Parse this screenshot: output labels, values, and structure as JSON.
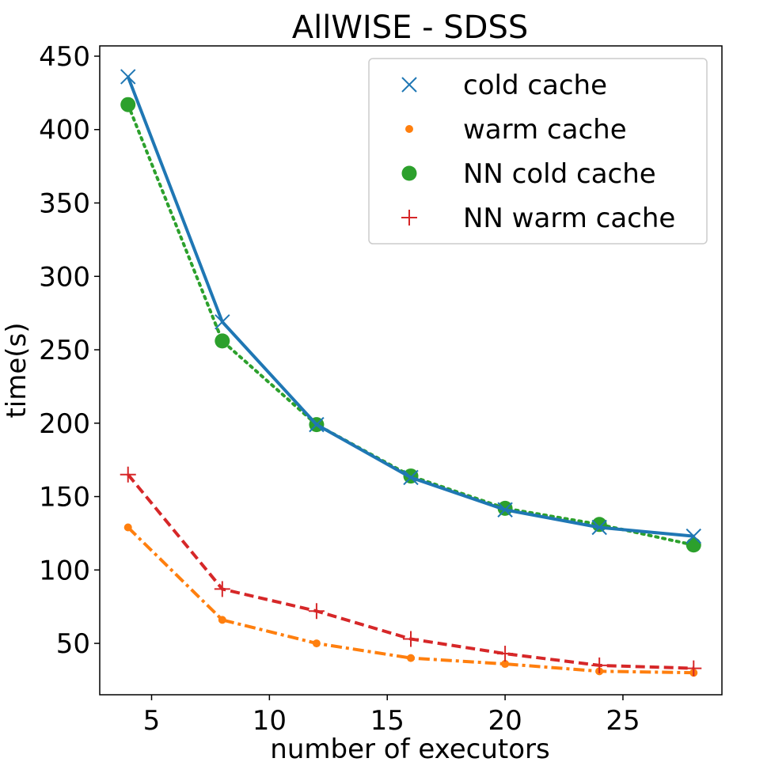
{
  "chart_data": {
    "type": "line",
    "title": "AllWISE - SDSS",
    "xlabel": "number of executors",
    "ylabel": "time(s)",
    "xlim": [
      2.8,
      29.2
    ],
    "ylim": [
      15,
      457
    ],
    "xticks": [
      5,
      10,
      15,
      20,
      25
    ],
    "yticks": [
      50,
      100,
      150,
      200,
      250,
      300,
      350,
      400,
      450
    ],
    "grid": false,
    "legend_position": "top-right",
    "x": [
      4,
      8,
      12,
      16,
      20,
      24,
      28
    ],
    "series": [
      {
        "name": "cold cache",
        "color": "#1f77b4",
        "marker": "x",
        "linestyle": "solid",
        "values": [
          436,
          269,
          199,
          163,
          141,
          129,
          123
        ]
      },
      {
        "name": "warm cache",
        "color": "#ff7f0e",
        "marker": "dot",
        "linestyle": "dashdot",
        "values": [
          129,
          66,
          50,
          40,
          36,
          31,
          30
        ]
      },
      {
        "name": "NN cold cache",
        "color": "#2ca02c",
        "marker": "circle",
        "linestyle": "dotted",
        "values": [
          417,
          256,
          199,
          164,
          142,
          131,
          117
        ]
      },
      {
        "name": "NN warm cache",
        "color": "#d62728",
        "marker": "plus",
        "linestyle": "dashed",
        "values": [
          165,
          87,
          72,
          53,
          43,
          35,
          33
        ]
      }
    ]
  }
}
